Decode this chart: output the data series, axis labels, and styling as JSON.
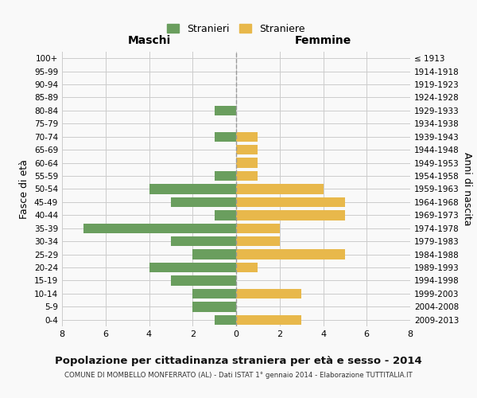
{
  "age_groups": [
    "100+",
    "95-99",
    "90-94",
    "85-89",
    "80-84",
    "75-79",
    "70-74",
    "65-69",
    "60-64",
    "55-59",
    "50-54",
    "45-49",
    "40-44",
    "35-39",
    "30-34",
    "25-29",
    "20-24",
    "15-19",
    "10-14",
    "5-9",
    "0-4"
  ],
  "birth_years": [
    "≤ 1913",
    "1914-1918",
    "1919-1923",
    "1924-1928",
    "1929-1933",
    "1934-1938",
    "1939-1943",
    "1944-1948",
    "1949-1953",
    "1954-1958",
    "1959-1963",
    "1964-1968",
    "1969-1973",
    "1974-1978",
    "1979-1983",
    "1984-1988",
    "1989-1993",
    "1994-1998",
    "1999-2003",
    "2004-2008",
    "2009-2013"
  ],
  "maschi": [
    0,
    0,
    0,
    0,
    1,
    0,
    1,
    0,
    0,
    1,
    4,
    3,
    1,
    7,
    3,
    2,
    4,
    3,
    2,
    2,
    1
  ],
  "femmine": [
    0,
    0,
    0,
    0,
    0,
    0,
    1,
    1,
    1,
    1,
    4,
    5,
    5,
    2,
    2,
    5,
    1,
    0,
    3,
    0,
    3
  ],
  "color_maschi": "#6a9e5e",
  "color_femmine": "#e8b84b",
  "title": "Popolazione per cittadinanza straniera per età e sesso - 2014",
  "subtitle": "COMUNE DI MOMBELLO MONFERRATO (AL) - Dati ISTAT 1° gennaio 2014 - Elaborazione TUTTITALIA.IT",
  "xlabel_left": "Maschi",
  "xlabel_right": "Femmine",
  "ylabel_left": "Fasce di età",
  "ylabel_right": "Anni di nascita",
  "legend_maschi": "Stranieri",
  "legend_femmine": "Straniere",
  "xlim": 8,
  "background_color": "#f9f9f9",
  "grid_color": "#cccccc"
}
